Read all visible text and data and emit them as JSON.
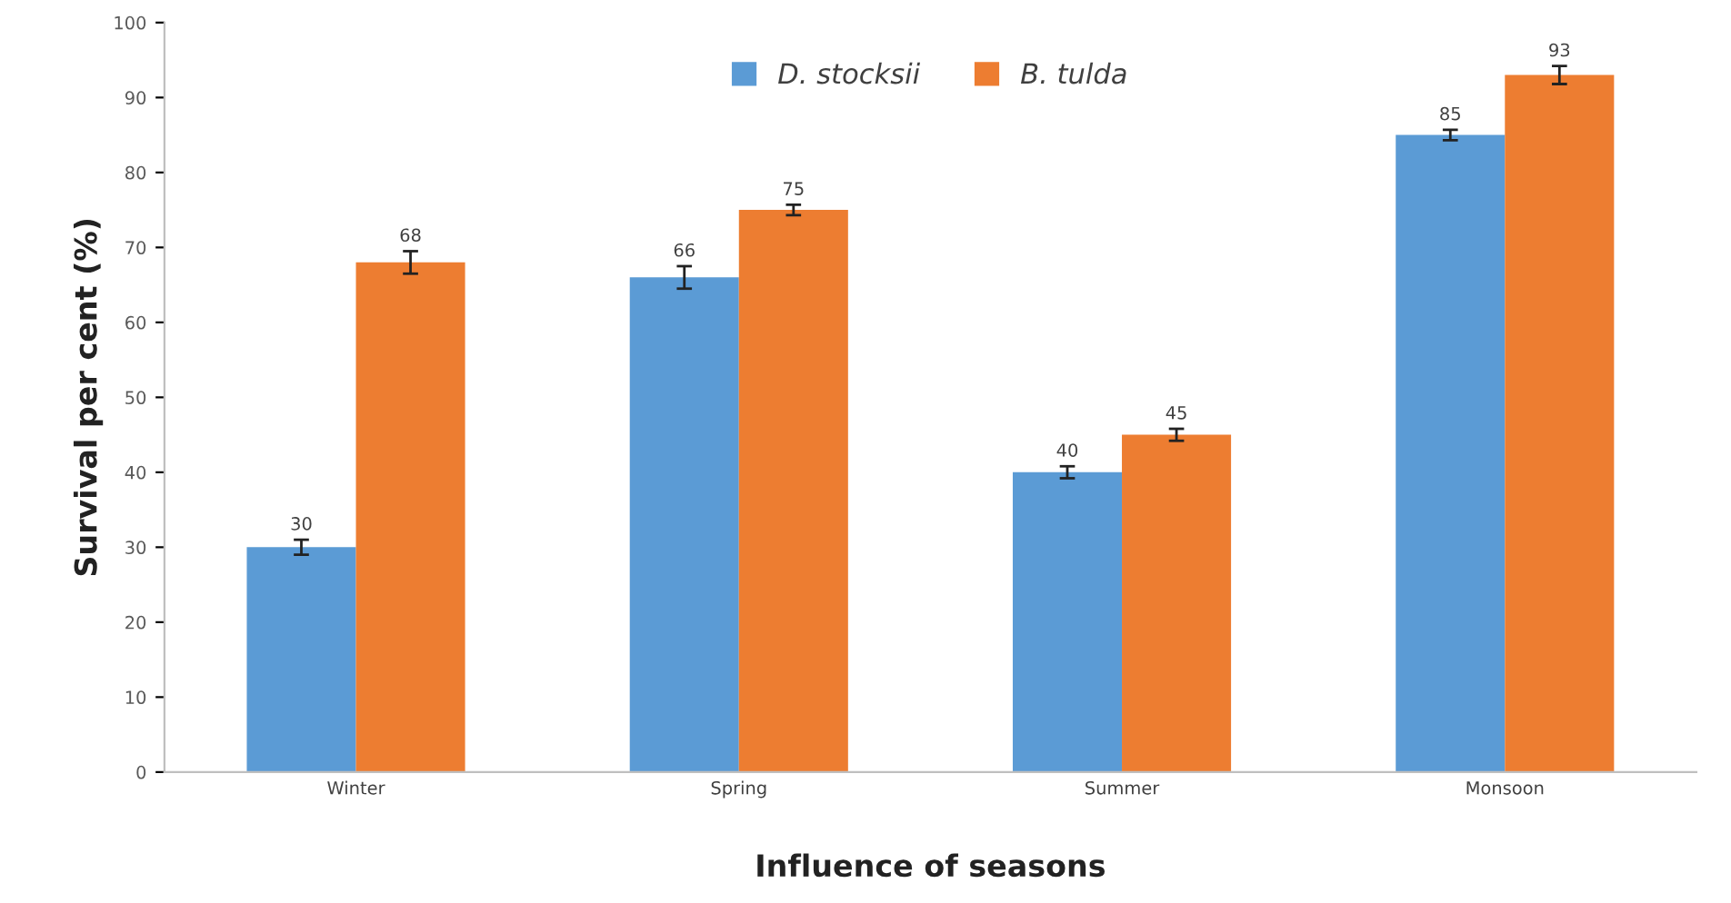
{
  "chart_data": {
    "type": "bar",
    "xlabel": "Influence of seasons",
    "ylabel": "Survival per cent (%)",
    "categories": [
      "Winter",
      "Spring",
      "Summer",
      "Monsoon"
    ],
    "series": [
      {
        "name": "D. stocksii",
        "color": "#5b9bd5",
        "values": [
          30,
          66,
          40,
          85
        ],
        "errors": [
          1,
          1.5,
          0.8,
          0.7
        ]
      },
      {
        "name": "B. tulda",
        "color": "#ed7d31",
        "values": [
          68,
          75,
          45,
          93
        ],
        "errors": [
          1.5,
          0.7,
          0.8,
          1.2
        ]
      }
    ],
    "ylim": [
      0,
      100
    ],
    "yticks": [
      0,
      10,
      20,
      30,
      40,
      50,
      60,
      70,
      80,
      90,
      100
    ],
    "grid": false,
    "legend": "top",
    "data_labels": true
  }
}
